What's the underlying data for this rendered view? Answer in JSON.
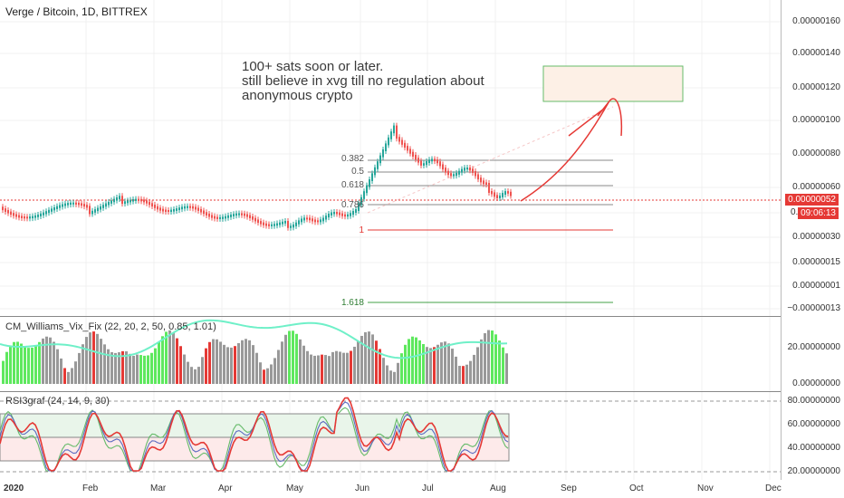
{
  "title": "Verge / Bitcoin, 1D, BITTREX",
  "annotation": {
    "line1": "100+ sats soon or later.",
    "line2": "still believe in xvg till no regulation about",
    "line3": "anonymous crypto"
  },
  "price_axis": [
    "0.00000160",
    "0.00000140",
    "0.00000120",
    "0.00000100",
    "0.00000080",
    "0.00000060",
    "0.00000030",
    "0.00000015",
    "0.00000001",
    "−0.00000013"
  ],
  "price_axis_partial": "0.",
  "price_tag": "0.00000052",
  "countdown_tag": "09:06:13",
  "fib_levels": [
    "0.382",
    "0.5",
    "0.618",
    "0.786",
    "1",
    "1.618"
  ],
  "x_axis": [
    "2020",
    "Feb",
    "Mar",
    "Apr",
    "May",
    "Jun",
    "Jul",
    "Aug",
    "Sep",
    "Oct",
    "Nov",
    "Dec"
  ],
  "indicator1": {
    "label": "CM_Williams_Vix_Fix (22, 20, 2, 50, 0.85, 1.01)",
    "axis": [
      "20.00000000",
      "0.00000000"
    ]
  },
  "indicator2": {
    "label": "RSI3graf (24, 14, 9, 30)",
    "axis": [
      "80.00000000",
      "60.00000000",
      "40.00000000",
      "20.00000000"
    ]
  },
  "colors": {
    "up": "#26a69a",
    "down": "#ef5350",
    "fib_red": "#e53935",
    "fib_gray": "#888888",
    "fib_green": "#43a047",
    "tag": "#e53935",
    "vix_line": "#6ff0c8",
    "vix_green": "#5ee85e",
    "vix_red": "#e53935",
    "vix_gray": "#999999",
    "rsi_red": "#e53935",
    "rsi_blue": "#5c6bc0",
    "rsi_green": "#66bb6a"
  }
}
